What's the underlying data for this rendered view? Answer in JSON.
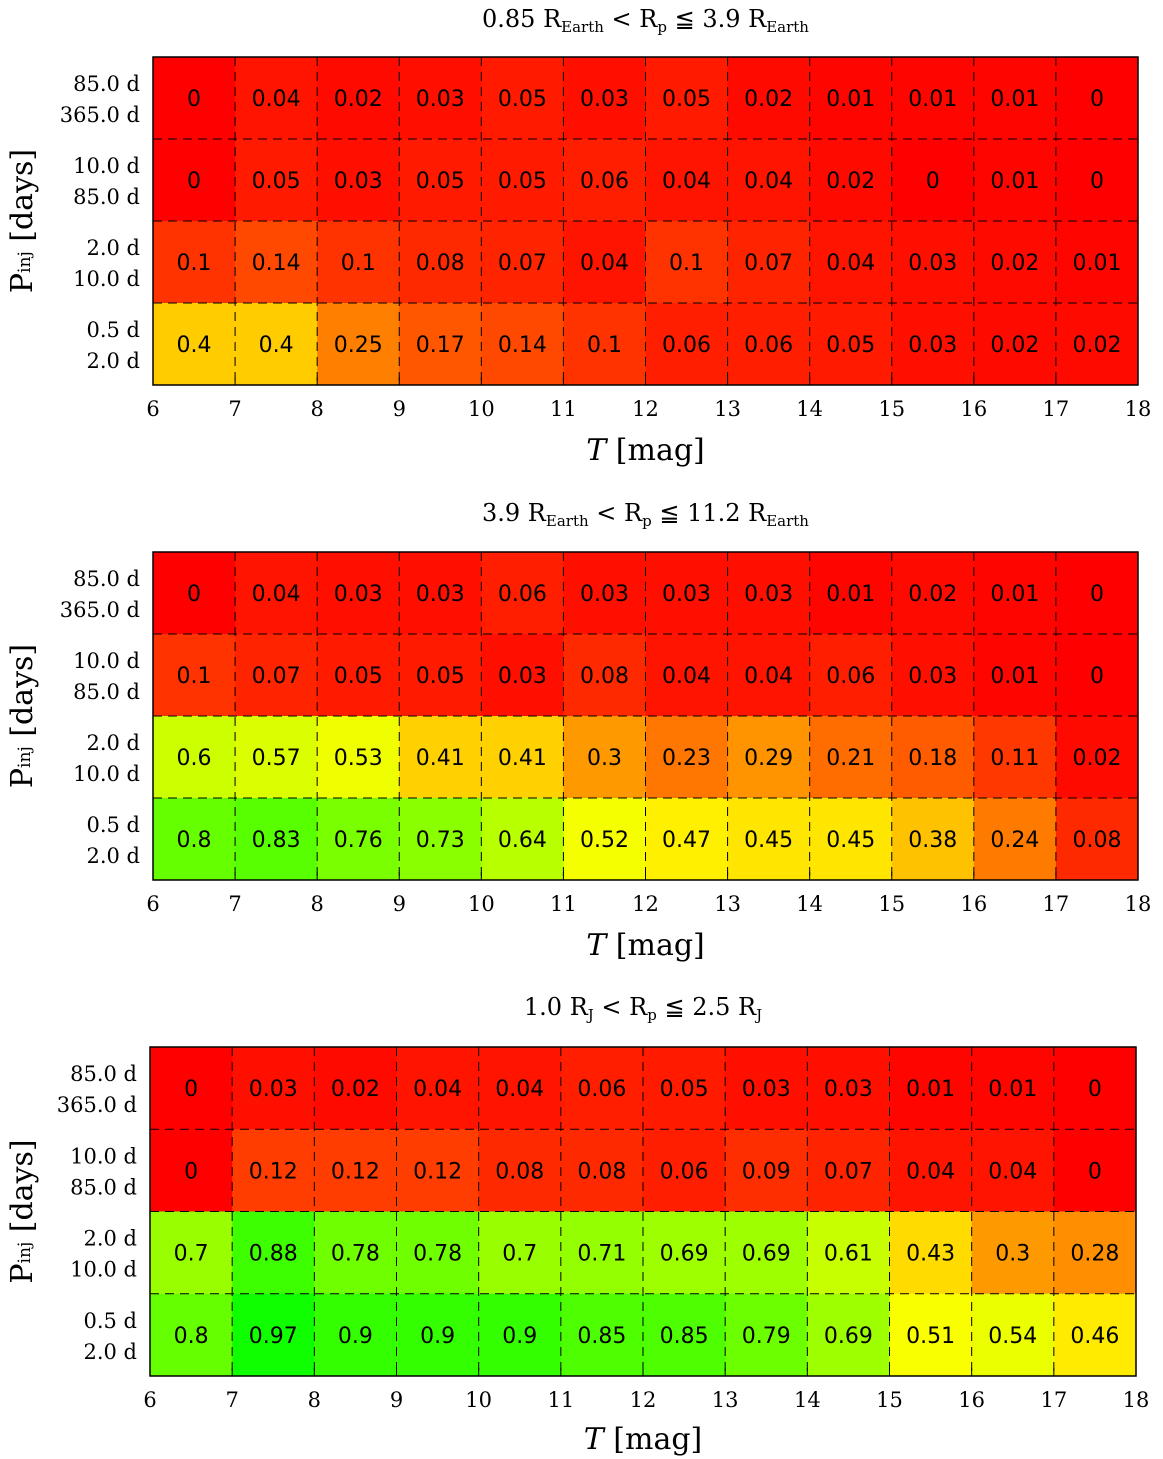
{
  "chart_data": [
    {
      "type": "heatmap",
      "title_parts": {
        "lower": "0.85 R",
        "lower_sub": "Earth",
        "lt": "<",
        "mid": "R",
        "mid_sub": "p",
        "le": "≦",
        "upper": "3.9 R",
        "upper_sub": "Earth"
      },
      "xlabel_italic": "T",
      "xlabel_unit": "[mag]",
      "ylabel_main": "P",
      "ylabel_sup": "inj",
      "ylabel_unit": "[days]",
      "x_ticks": [
        "6",
        "7",
        "8",
        "9",
        "10",
        "11",
        "12",
        "13",
        "14",
        "15",
        "16",
        "17",
        "18"
      ],
      "row_labels": [
        [
          "85.0 d",
          "365.0 d"
        ],
        [
          "10.0 d",
          "85.0 d"
        ],
        [
          "2.0 d",
          "10.0 d"
        ],
        [
          "0.5 d",
          "2.0 d"
        ]
      ],
      "values": [
        [
          0,
          0.04,
          0.02,
          0.03,
          0.05,
          0.03,
          0.05,
          0.02,
          0.01,
          0.01,
          0.01,
          0
        ],
        [
          0,
          0.05,
          0.03,
          0.05,
          0.05,
          0.06,
          0.04,
          0.04,
          0.02,
          0,
          0.01,
          0
        ],
        [
          0.1,
          0.14,
          0.1,
          0.08,
          0.07,
          0.04,
          0.1,
          0.07,
          0.04,
          0.03,
          0.02,
          0.01
        ],
        [
          0.4,
          0.4,
          0.25,
          0.17,
          0.14,
          0.1,
          0.06,
          0.06,
          0.05,
          0.03,
          0.02,
          0.02
        ]
      ],
      "xlim": [
        6,
        18
      ]
    },
    {
      "type": "heatmap",
      "title_parts": {
        "lower": "3.9 R",
        "lower_sub": "Earth",
        "lt": "<",
        "mid": "R",
        "mid_sub": "p",
        "le": "≦",
        "upper": "11.2 R",
        "upper_sub": "Earth"
      },
      "xlabel_italic": "T",
      "xlabel_unit": "[mag]",
      "ylabel_main": "P",
      "ylabel_sup": "inj",
      "ylabel_unit": "[days]",
      "x_ticks": [
        "6",
        "7",
        "8",
        "9",
        "10",
        "11",
        "12",
        "13",
        "14",
        "15",
        "16",
        "17",
        "18"
      ],
      "row_labels": [
        [
          "85.0 d",
          "365.0 d"
        ],
        [
          "10.0 d",
          "85.0 d"
        ],
        [
          "2.0 d",
          "10.0 d"
        ],
        [
          "0.5 d",
          "2.0 d"
        ]
      ],
      "values": [
        [
          0,
          0.04,
          0.03,
          0.03,
          0.06,
          0.03,
          0.03,
          0.03,
          0.01,
          0.02,
          0.01,
          0
        ],
        [
          0.1,
          0.07,
          0.05,
          0.05,
          0.03,
          0.08,
          0.04,
          0.04,
          0.06,
          0.03,
          0.01,
          0
        ],
        [
          0.6,
          0.57,
          0.53,
          0.41,
          0.41,
          0.3,
          0.23,
          0.29,
          0.21,
          0.18,
          0.11,
          0.02
        ],
        [
          0.8,
          0.83,
          0.76,
          0.73,
          0.64,
          0.52,
          0.47,
          0.45,
          0.45,
          0.38,
          0.24,
          0.08
        ]
      ],
      "xlim": [
        6,
        18
      ]
    },
    {
      "type": "heatmap",
      "title_parts": {
        "lower": "1.0 R",
        "lower_sub": "J",
        "lt": "<",
        "mid": "R",
        "mid_sub": "p",
        "le": "≦",
        "upper": "2.5 R",
        "upper_sub": "J"
      },
      "xlabel_italic": "T",
      "xlabel_unit": "[mag]",
      "ylabel_main": "P",
      "ylabel_sup": "inj",
      "ylabel_unit": "[days]",
      "x_ticks": [
        "6",
        "7",
        "8",
        "9",
        "10",
        "11",
        "12",
        "13",
        "14",
        "15",
        "16",
        "17",
        "18"
      ],
      "row_labels": [
        [
          "85.0 d",
          "365.0 d"
        ],
        [
          "10.0 d",
          "85.0 d"
        ],
        [
          "2.0 d",
          "10.0 d"
        ],
        [
          "0.5 d",
          "2.0 d"
        ]
      ],
      "values": [
        [
          0,
          0.03,
          0.02,
          0.04,
          0.04,
          0.06,
          0.05,
          0.03,
          0.03,
          0.01,
          0.01,
          0
        ],
        [
          0,
          0.12,
          0.12,
          0.12,
          0.08,
          0.08,
          0.06,
          0.09,
          0.07,
          0.04,
          0.04,
          0
        ],
        [
          0.7,
          0.88,
          0.78,
          0.78,
          0.7,
          0.71,
          0.69,
          0.69,
          0.61,
          0.43,
          0.3,
          0.28
        ],
        [
          0.8,
          0.97,
          0.9,
          0.9,
          0.9,
          0.85,
          0.85,
          0.79,
          0.69,
          0.51,
          0.54,
          0.46
        ]
      ],
      "xlim": [
        6,
        18
      ]
    }
  ]
}
